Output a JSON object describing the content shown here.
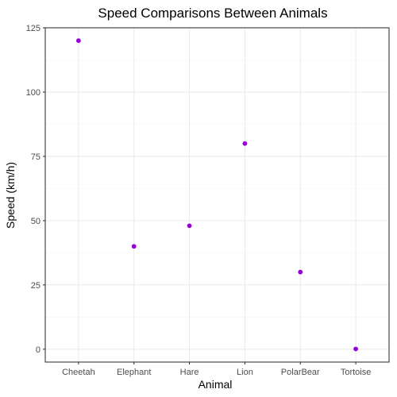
{
  "chart_data": {
    "type": "scatter",
    "title": "Speed Comparisons Between Animals",
    "xlabel": "Animal",
    "ylabel": "Speed (km/h)",
    "categories": [
      "Cheetah",
      "Elephant",
      "Hare",
      "Lion",
      "PolarBear",
      "Tortoise"
    ],
    "values": [
      120,
      40,
      48,
      80,
      30,
      0.1
    ],
    "ylim": [
      -5,
      125
    ],
    "yticks": [
      0,
      25,
      50,
      75,
      100,
      125
    ],
    "ytick_labels": [
      "0",
      "25",
      "50",
      "75",
      "100",
      "125"
    ],
    "grid": true,
    "theme": "bw",
    "point_color": "#9400d3",
    "grid_color": "#ebebeb",
    "border_color": "#333333"
  }
}
